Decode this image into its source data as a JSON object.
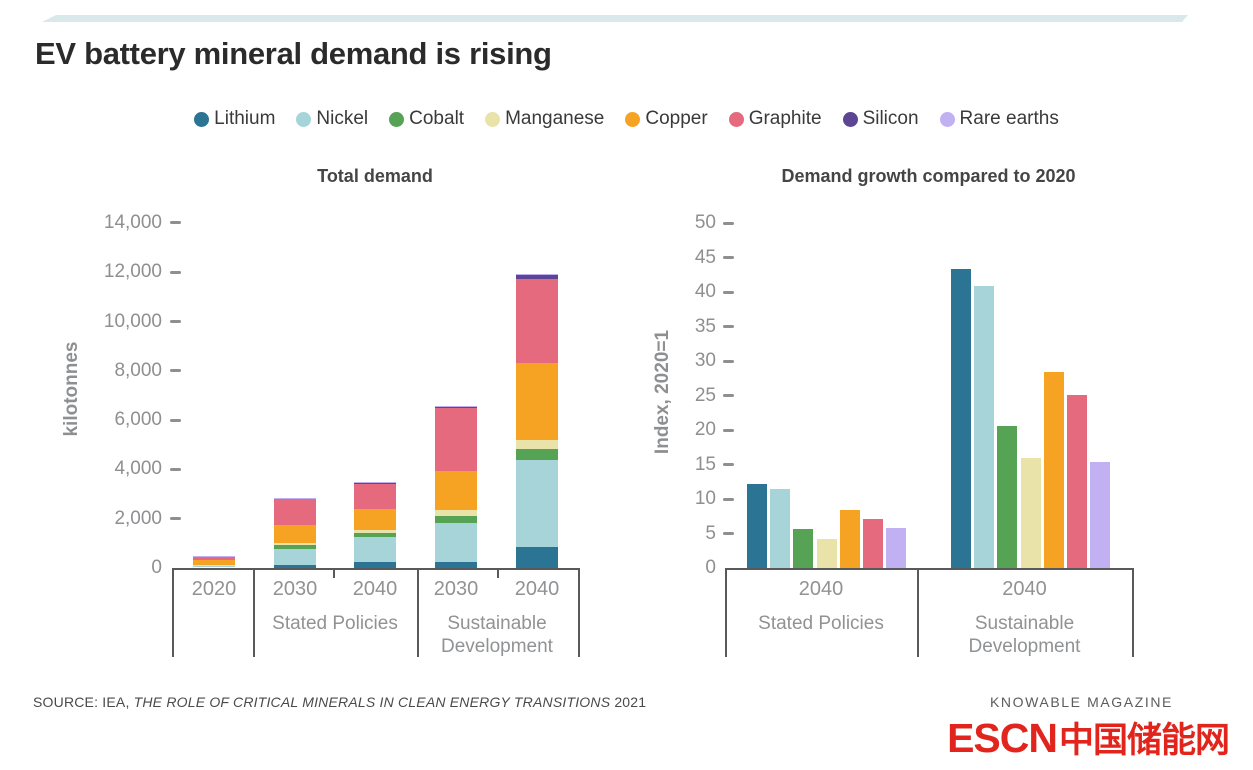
{
  "page": {
    "title": "EV battery mineral demand is rising",
    "source": {
      "prefix": "SOURCE: IEA, ",
      "report_title": "THE ROLE OF CRITICAL MINERALS IN CLEAN ENERGY TRANSITIONS",
      "suffix": " 2021"
    },
    "credit": "KNOWABLE MAGAZINE",
    "watermark": {
      "latin": "ESCN",
      "cjk": "中国储能网"
    }
  },
  "colors": {
    "accent_strip": "#d9e8ea",
    "axis": "#58595b",
    "tick_text": "#8d8f91",
    "watermark_red": "#e1251c"
  },
  "legend": [
    {
      "label": "Lithium",
      "color": "#2c7493"
    },
    {
      "label": "Nickel",
      "color": "#a6d4d9"
    },
    {
      "label": "Cobalt",
      "color": "#56a356"
    },
    {
      "label": "Manganese",
      "color": "#eae3a9"
    },
    {
      "label": "Copper",
      "color": "#f6a323"
    },
    {
      "label": "Graphite",
      "color": "#e56a7e"
    },
    {
      "label": "Silicon",
      "color": "#5c4693"
    },
    {
      "label": "Rare earths",
      "color": "#c2b1f2"
    }
  ],
  "chart_data": [
    {
      "type": "bar",
      "stacked": true,
      "title": "Total demand",
      "ylabel": "kilotonnes",
      "ylim": [
        0,
        14000
      ],
      "ytick_step": 2000,
      "grid": false,
      "categories": [
        "2020",
        "2030",
        "2040",
        "2030",
        "2040"
      ],
      "group_labels": [
        "",
        "Stated Policies",
        "Sustainable Development"
      ],
      "series": [
        {
          "name": "Lithium",
          "values": [
            20,
            140,
            250,
            240,
            850
          ]
        },
        {
          "name": "Nickel",
          "values": [
            65,
            650,
            1000,
            1580,
            3550
          ]
        },
        {
          "name": "Cobalt",
          "values": [
            25,
            130,
            170,
            280,
            430
          ]
        },
        {
          "name": "Manganese",
          "values": [
            25,
            80,
            130,
            240,
            350
          ]
        },
        {
          "name": "Copper",
          "values": [
            190,
            750,
            850,
            1580,
            3150
          ]
        },
        {
          "name": "Graphite",
          "values": [
            140,
            1080,
            1050,
            2600,
            3400
          ]
        },
        {
          "name": "Silicon",
          "values": [
            5,
            10,
            15,
            30,
            180
          ]
        },
        {
          "name": "Rare earths",
          "values": [
            5,
            10,
            15,
            30,
            20
          ]
        }
      ]
    },
    {
      "type": "bar",
      "stacked": false,
      "title": "Demand growth compared to 2020",
      "ylabel": "Index, 2020=1",
      "ylim": [
        0,
        50
      ],
      "ytick_step": 5,
      "grid": false,
      "categories": [
        "2040",
        "2040"
      ],
      "group_labels": [
        "Stated Policies",
        "Sustainable Development"
      ],
      "series": [
        {
          "name": "Lithium",
          "values": [
            12.2,
            43.4
          ]
        },
        {
          "name": "Nickel",
          "values": [
            11.4,
            40.8
          ]
        },
        {
          "name": "Cobalt",
          "values": [
            5.7,
            20.6
          ]
        },
        {
          "name": "Manganese",
          "values": [
            4.2,
            16.0
          ]
        },
        {
          "name": "Copper",
          "values": [
            8.4,
            28.4
          ]
        },
        {
          "name": "Graphite",
          "values": [
            7.1,
            25.1
          ]
        },
        {
          "name": "Rare earths",
          "values": [
            5.8,
            15.4
          ]
        }
      ]
    }
  ]
}
